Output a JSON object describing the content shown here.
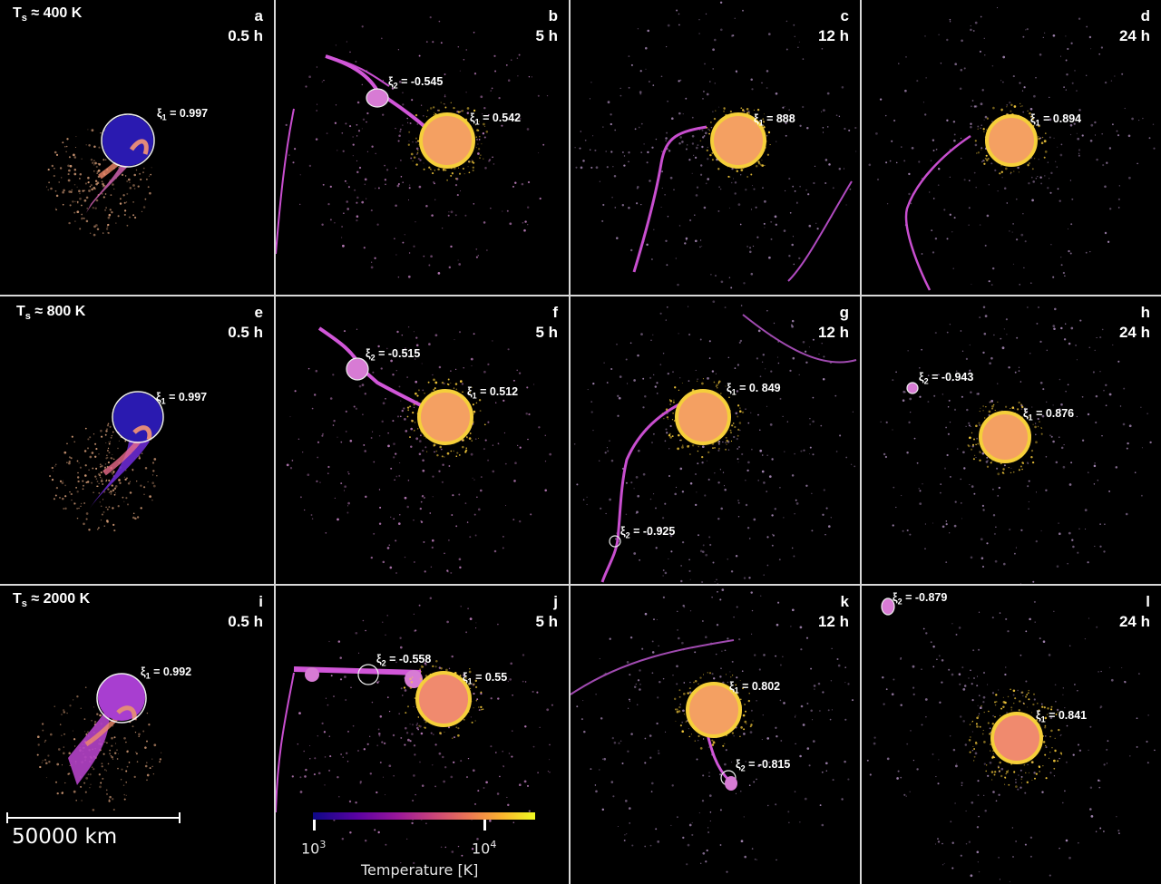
{
  "rows": [
    {
      "label_prefix": "T",
      "label_sub": "s",
      "label_value": "≈ 400 K",
      "panels": [
        {
          "letter": "a",
          "time": "0.5 h",
          "xi1": "= 0.997",
          "xi2": null
        },
        {
          "letter": "b",
          "time": "5 h",
          "xi1": "= 0.542",
          "xi2": "= -0.545"
        },
        {
          "letter": "c",
          "time": "12 h",
          "xi1": "= 888",
          "xi2": null
        },
        {
          "letter": "d",
          "time": "24 h",
          "xi1": "= 0.894",
          "xi2": null
        }
      ]
    },
    {
      "label_prefix": "T",
      "label_sub": "s",
      "label_value": "≈ 800 K",
      "panels": [
        {
          "letter": "e",
          "time": "0.5 h",
          "xi1": "= 0.997",
          "xi2": null
        },
        {
          "letter": "f",
          "time": "5 h",
          "xi1": "= 0.512",
          "xi2": "= -0.515"
        },
        {
          "letter": "g",
          "time": "12 h",
          "xi1": "= 0. 849",
          "xi2": "= -0.925"
        },
        {
          "letter": "h",
          "time": "24 h",
          "xi1": "= 0.876",
          "xi2": "= -0.943"
        }
      ]
    },
    {
      "label_prefix": "T",
      "label_sub": "s",
      "label_value": "≈ 2000 K",
      "panels": [
        {
          "letter": "i",
          "time": "0.5 h",
          "xi1": "= 0.992",
          "xi2": null
        },
        {
          "letter": "j",
          "time": "5 h",
          "xi1": "= 0.55",
          "xi2": "= -0.558"
        },
        {
          "letter": "k",
          "time": "12 h",
          "xi1": "= 0.802",
          "xi2": "= -0.815"
        },
        {
          "letter": "l",
          "time": "24 h",
          "xi1": "= 0.841",
          "xi2": "= -0.879"
        }
      ]
    }
  ],
  "xi_symbol": "ξ",
  "xi1_sub": "1",
  "xi2_sub": "2",
  "scale_bar": {
    "label": "50000 km"
  },
  "colorbar": {
    "label": "Temperature [K]",
    "tick1_base": "10",
    "tick1_exp": "3",
    "tick2_base": "10",
    "tick2_exp": "4",
    "colors": [
      "#0d0887",
      "#5b02a3",
      "#9a179b",
      "#cb4678",
      "#eb7655",
      "#fbb32f",
      "#f0f921"
    ]
  }
}
